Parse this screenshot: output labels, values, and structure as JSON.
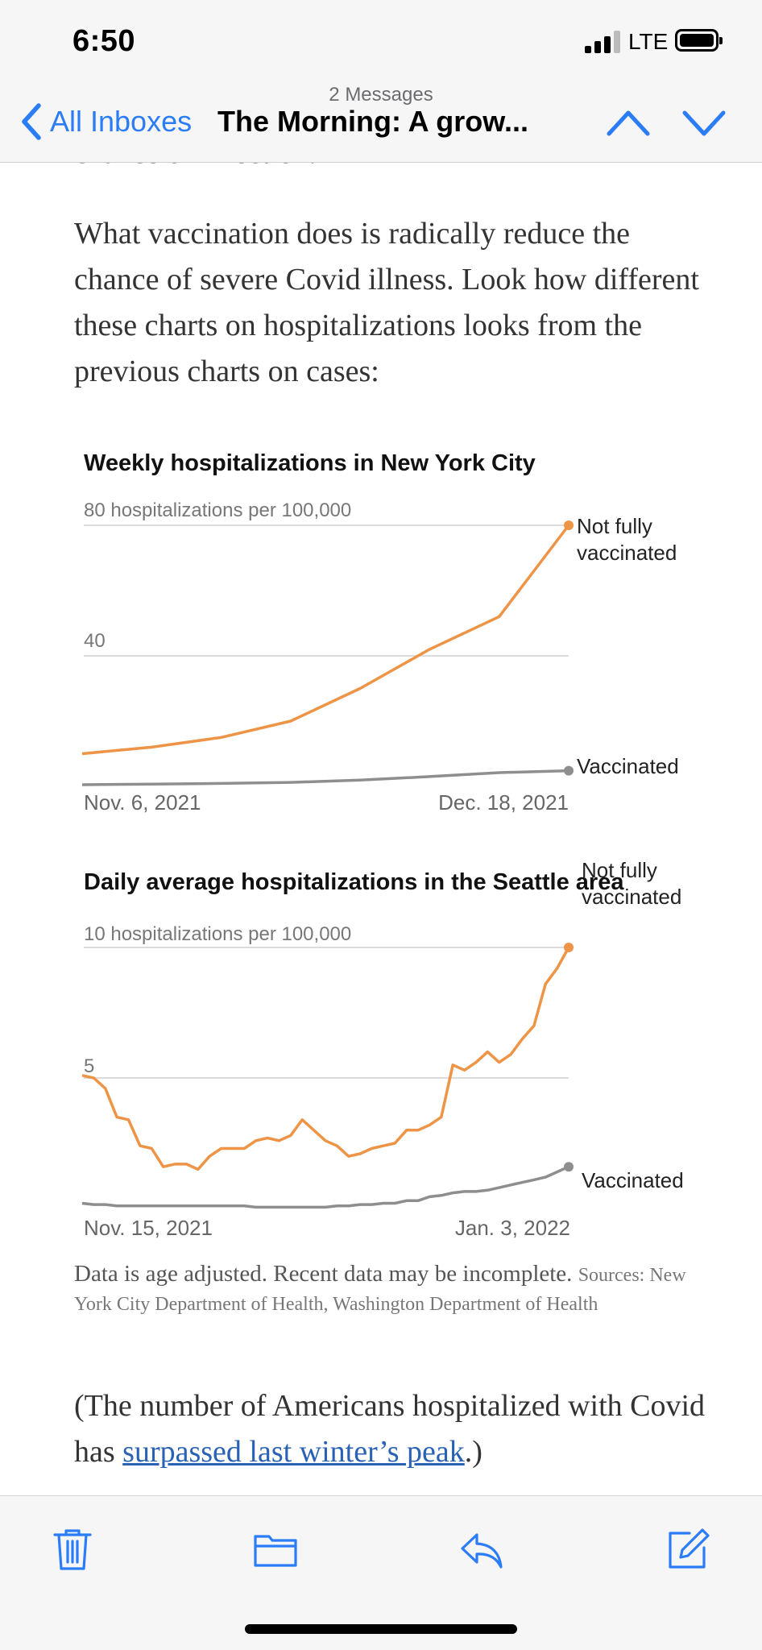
{
  "status_bar": {
    "time": "6:50",
    "network": "LTE"
  },
  "nav": {
    "message_count": "2 Messages",
    "back_label": "All Inboxes",
    "title": "The Morning: A grow..."
  },
  "article": {
    "cut_text": "chance of infection.",
    "paragraph_1": "What vaccination does is radically reduce the chance of severe Covid illness. Look how different these charts on hospitalizations looks from the previous charts on cases:",
    "note": "Data is age adjusted. Recent data may be incomplete.",
    "sources": "Sources: New York City Department of Health, Washington Department of Health",
    "paragraph_2_prefix": "(The number of Americans hospitalized with Covid has ",
    "paragraph_2_link": "surpassed last winter’s peak",
    "paragraph_2_suffix": ".)"
  },
  "colors": {
    "accent": "#2b7cf7",
    "not_vaccinated": "#ee9446",
    "vaccinated": "#8e8e8e"
  },
  "icons": [
    "chevron-left-icon",
    "chevron-up-icon",
    "chevron-down-icon",
    "trash-icon",
    "folder-icon",
    "reply-icon",
    "compose-icon"
  ],
  "chart_data": [
    {
      "type": "line",
      "title": "Weekly hospitalizations in New York City",
      "ylabel": "hospitalizations per 100,000",
      "ylim": [
        0,
        80
      ],
      "yticks": [
        40,
        80
      ],
      "top_tick_label": "80 hospitalizations per 100,000",
      "mid_tick_label": "40",
      "x_labels": [
        "Nov. 6, 2021",
        "Dec. 18, 2021"
      ],
      "x": [
        "2021-11-06",
        "2021-11-13",
        "2021-11-20",
        "2021-11-27",
        "2021-12-04",
        "2021-12-11",
        "2021-12-18",
        "2021-12-25"
      ],
      "series": [
        {
          "name": "Not fully vaccinated",
          "label_lines": [
            "Not fully",
            "vaccinated"
          ],
          "values": [
            10,
            12,
            15,
            20,
            30,
            42,
            52,
            80
          ]
        },
        {
          "name": "Vaccinated",
          "label_lines": [
            "Vaccinated"
          ],
          "values": [
            0.5,
            0.7,
            0.9,
            1.2,
            1.9,
            3.0,
            4.2,
            4.8
          ]
        }
      ]
    },
    {
      "type": "line",
      "title": "Daily average hospitalizations in the Seattle area",
      "ylabel": "hospitalizations per 100,000",
      "ylim": [
        0,
        10
      ],
      "yticks": [
        5,
        10
      ],
      "top_tick_label": "10 hospitalizations per 100,000",
      "mid_tick_label": "5",
      "x_labels": [
        "Nov. 15, 2021",
        "Jan. 3, 2022"
      ],
      "series": [
        {
          "name": "Not fully vaccinated",
          "label_lines": [
            "Not fully",
            "vaccinated"
          ],
          "values": [
            5.1,
            5.0,
            4.6,
            3.5,
            3.4,
            2.4,
            2.3,
            1.6,
            1.7,
            1.7,
            1.5,
            2.0,
            2.3,
            2.3,
            2.3,
            2.6,
            2.7,
            2.6,
            2.8,
            3.4,
            3.0,
            2.6,
            2.4,
            2.0,
            2.1,
            2.3,
            2.4,
            2.5,
            3.0,
            3.0,
            3.2,
            3.5,
            5.5,
            5.3,
            5.6,
            6.0,
            5.6,
            5.9,
            6.5,
            7.0,
            8.6,
            9.2,
            10.0
          ]
        },
        {
          "name": "Vaccinated",
          "label_lines": [
            "Vaccinated"
          ],
          "values": [
            0.2,
            0.15,
            0.15,
            0.1,
            0.1,
            0.1,
            0.1,
            0.1,
            0.1,
            0.1,
            0.1,
            0.1,
            0.1,
            0.1,
            0.1,
            0.05,
            0.05,
            0.05,
            0.05,
            0.05,
            0.05,
            0.05,
            0.1,
            0.1,
            0.15,
            0.15,
            0.2,
            0.2,
            0.3,
            0.3,
            0.45,
            0.5,
            0.6,
            0.65,
            0.65,
            0.7,
            0.8,
            0.9,
            1.0,
            1.1,
            1.2,
            1.4,
            1.6
          ]
        }
      ]
    }
  ]
}
